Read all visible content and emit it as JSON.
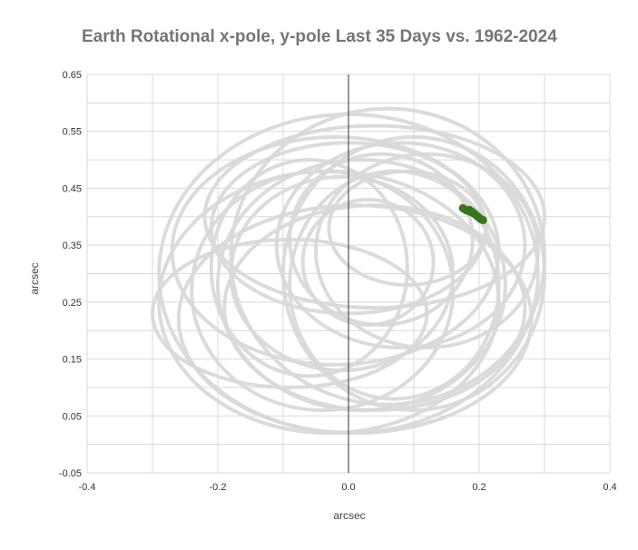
{
  "chart_data": {
    "type": "scatter",
    "title": "Earth Rotational x-pole, y-pole Last 35 Days vs. 1962-2024",
    "xlabel": "arcsec",
    "ylabel": "arcsec",
    "xlim": [
      -0.4,
      0.4
    ],
    "ylim": [
      -0.05,
      0.65
    ],
    "x_ticks": [
      "-0.4",
      "-0.2",
      "0.0",
      "0.2",
      "0.4"
    ],
    "y_ticks": [
      "-0.05",
      "0.05",
      "0.15",
      "0.25",
      "0.35",
      "0.45",
      "0.55",
      "0.65"
    ],
    "grid": true,
    "colors": {
      "history": "#d9d9d9",
      "recent": "#38761d",
      "grid": "#d9d9d9",
      "zero_axis": "#333333"
    },
    "series": [
      {
        "id": "history",
        "years": "1962-2024",
        "style": "dense polar-motion loops",
        "loops": [
          {
            "cx": 0.0,
            "cy": 0.3,
            "rx": 0.29,
            "ry": 0.28,
            "rot": 0
          },
          {
            "cx": -0.03,
            "cy": 0.25,
            "rx": 0.26,
            "ry": 0.23,
            "rot": 0
          },
          {
            "cx": 0.06,
            "cy": 0.33,
            "rx": 0.24,
            "ry": 0.26,
            "rot": 0
          },
          {
            "cx": 0.02,
            "cy": 0.28,
            "rx": 0.22,
            "ry": 0.22,
            "rot": 0
          },
          {
            "cx": 0.08,
            "cy": 0.35,
            "rx": 0.19,
            "ry": 0.18,
            "rot": 0
          },
          {
            "cx": -0.01,
            "cy": 0.3,
            "rx": 0.17,
            "ry": 0.17,
            "rot": 0
          },
          {
            "cx": 0.05,
            "cy": 0.36,
            "rx": 0.14,
            "ry": 0.15,
            "rot": 0
          },
          {
            "cx": 0.03,
            "cy": 0.32,
            "rx": 0.1,
            "ry": 0.11,
            "rot": 0
          },
          {
            "cx": -0.04,
            "cy": 0.27,
            "rx": 0.2,
            "ry": 0.21,
            "rot": 0
          },
          {
            "cx": 0.1,
            "cy": 0.3,
            "rx": 0.2,
            "ry": 0.24,
            "rot": 0
          },
          {
            "cx": -0.02,
            "cy": 0.34,
            "rx": 0.25,
            "ry": 0.2,
            "rot": 0
          },
          {
            "cx": 0.04,
            "cy": 0.24,
            "rx": 0.23,
            "ry": 0.18,
            "rot": 0
          },
          {
            "cx": 0.0,
            "cy": 0.38,
            "rx": 0.21,
            "ry": 0.15,
            "rot": 0
          },
          {
            "cx": 0.07,
            "cy": 0.28,
            "rx": 0.16,
            "ry": 0.2,
            "rot": 0
          },
          {
            "cx": -0.06,
            "cy": 0.31,
            "rx": 0.15,
            "ry": 0.19,
            "rot": 0
          },
          {
            "cx": 0.09,
            "cy": 0.38,
            "rx": 0.12,
            "ry": 0.1,
            "rot": 0
          },
          {
            "cx": 0.01,
            "cy": 0.22,
            "rx": 0.27,
            "ry": 0.2,
            "rot": 0
          },
          {
            "cx": 0.04,
            "cy": 0.4,
            "rx": 0.26,
            "ry": 0.16,
            "rot": 0
          },
          {
            "cx": -0.09,
            "cy": 0.23,
            "rx": 0.21,
            "ry": 0.13,
            "rot": 0
          },
          {
            "cx": 0.12,
            "cy": 0.34,
            "rx": 0.17,
            "ry": 0.17,
            "rot": 0
          }
        ]
      },
      {
        "id": "recent",
        "period": "Last 35 Days",
        "x": [
          0.175,
          0.178,
          0.181,
          0.184,
          0.186,
          0.188,
          0.19,
          0.192,
          0.194,
          0.196,
          0.198,
          0.2,
          0.202,
          0.204,
          0.206,
          0.185,
          0.189,
          0.193,
          0.197
        ],
        "y": [
          0.415,
          0.413,
          0.411,
          0.41,
          0.409,
          0.408,
          0.407,
          0.406,
          0.404,
          0.402,
          0.4,
          0.398,
          0.396,
          0.395,
          0.394,
          0.412,
          0.409,
          0.405,
          0.401
        ]
      }
    ]
  }
}
